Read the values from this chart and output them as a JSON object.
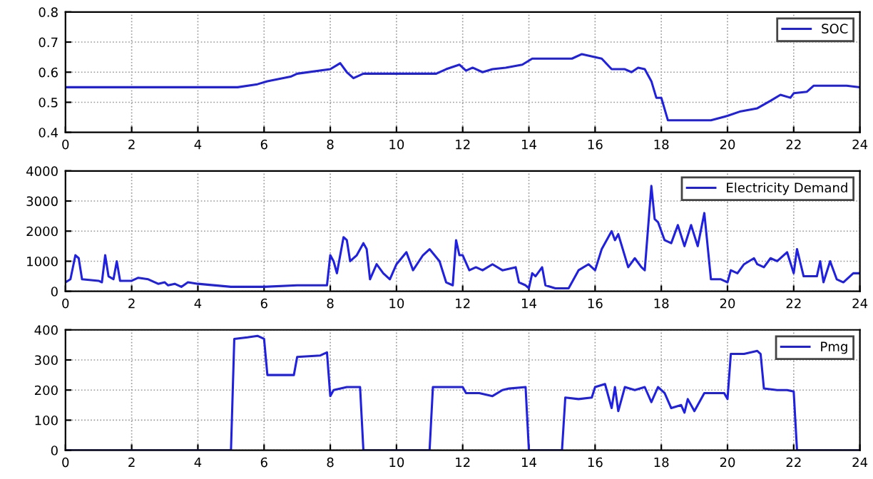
{
  "chart_data": [
    {
      "type": "line",
      "xlim": [
        0,
        24
      ],
      "xticks": [
        0,
        2,
        4,
        6,
        8,
        10,
        12,
        14,
        16,
        18,
        20,
        22,
        24
      ],
      "ylim": [
        0.4,
        0.8
      ],
      "yticks": [
        0.4,
        0.5,
        0.6,
        0.7,
        0.8
      ],
      "grid": true,
      "legend": "top right",
      "line_style": "solid",
      "series": [
        {
          "name": "SOC",
          "color": "#2020e0",
          "x": [
            0,
            5.2,
            5.8,
            6.1,
            6.8,
            7,
            8,
            8.3,
            8.5,
            8.7,
            9,
            11.2,
            11.5,
            11.9,
            12.1,
            12.3,
            12.6,
            12.9,
            13.3,
            13.8,
            14.1,
            15.3,
            15.6,
            16.2,
            16.5,
            16.9,
            17.1,
            17.3,
            17.5,
            17.7,
            17.85,
            18,
            18.2,
            19.5,
            20,
            20.4,
            20.9,
            21.3,
            21.6,
            21.9,
            22,
            22.4,
            22.6,
            23.6,
            24
          ],
          "values": [
            0.55,
            0.55,
            0.56,
            0.57,
            0.585,
            0.595,
            0.61,
            0.63,
            0.6,
            0.58,
            0.595,
            0.595,
            0.61,
            0.625,
            0.605,
            0.615,
            0.6,
            0.61,
            0.615,
            0.625,
            0.645,
            0.645,
            0.66,
            0.645,
            0.61,
            0.61,
            0.6,
            0.615,
            0.61,
            0.57,
            0.515,
            0.515,
            0.44,
            0.44,
            0.455,
            0.47,
            0.48,
            0.505,
            0.525,
            0.515,
            0.53,
            0.535,
            0.555,
            0.555,
            0.55
          ]
        }
      ]
    },
    {
      "type": "line",
      "xlim": [
        0,
        24
      ],
      "xticks": [
        0,
        2,
        4,
        6,
        8,
        10,
        12,
        14,
        16,
        18,
        20,
        22,
        24
      ],
      "ylim": [
        0,
        4000
      ],
      "yticks": [
        0,
        1000,
        2000,
        3000,
        4000
      ],
      "grid": true,
      "legend": "top right",
      "line_style": "solid",
      "series": [
        {
          "name": "Electricity Demand",
          "color": "#2020e0",
          "x": [
            0,
            0.15,
            0.3,
            0.4,
            0.5,
            1.0,
            1.1,
            1.2,
            1.3,
            1.45,
            1.55,
            1.65,
            2.0,
            2.2,
            2.5,
            2.8,
            3.0,
            3.1,
            3.3,
            3.5,
            3.7,
            4,
            5,
            6,
            7,
            7.9,
            8.0,
            8.1,
            8.2,
            8.4,
            8.5,
            8.6,
            8.8,
            9.0,
            9.1,
            9.2,
            9.4,
            9.6,
            9.8,
            10.0,
            10.3,
            10.5,
            10.8,
            11.0,
            11.3,
            11.5,
            11.7,
            11.8,
            11.9,
            12.0,
            12.2,
            12.4,
            12.6,
            12.9,
            13.2,
            13.6,
            13.7,
            13.9,
            14.0,
            14.1,
            14.2,
            14.4,
            14.5,
            14.8,
            15.2,
            15.5,
            15.8,
            16.0,
            16.2,
            16.5,
            16.6,
            16.7,
            17.0,
            17.2,
            17.4,
            17.5,
            17.7,
            17.8,
            17.9,
            18.1,
            18.3,
            18.5,
            18.7,
            18.9,
            19.1,
            19.3,
            19.5,
            19.8,
            20.0,
            20.1,
            20.3,
            20.5,
            20.8,
            20.9,
            21.1,
            21.3,
            21.5,
            21.8,
            22.0,
            22.1,
            22.3,
            22.7,
            22.8,
            22.9,
            23.1,
            23.3,
            23.5,
            23.6,
            23.8,
            24
          ],
          "values": [
            300,
            400,
            1200,
            1100,
            400,
            350,
            300,
            1200,
            500,
            400,
            1000,
            350,
            350,
            450,
            400,
            250,
            300,
            200,
            250,
            150,
            300,
            250,
            150,
            150,
            200,
            200,
            1200,
            1000,
            600,
            1800,
            1700,
            1000,
            1200,
            1600,
            1400,
            400,
            900,
            600,
            400,
            900,
            1300,
            700,
            1200,
            1400,
            1000,
            300,
            200,
            1700,
            1200,
            1200,
            700,
            800,
            700,
            900,
            700,
            800,
            300,
            200,
            100,
            600,
            500,
            800,
            200,
            100,
            100,
            700,
            900,
            700,
            1400,
            2000,
            1700,
            1900,
            800,
            1100,
            800,
            700,
            3500,
            2400,
            2300,
            1700,
            1600,
            2200,
            1500,
            2200,
            1500,
            2600,
            400,
            400,
            300,
            700,
            600,
            900,
            1100,
            900,
            800,
            1100,
            1000,
            1300,
            600,
            1400,
            500,
            500,
            1000,
            300,
            1000,
            400,
            300,
            400,
            600,
            600
          ]
        }
      ]
    },
    {
      "type": "line",
      "xlim": [
        0,
        24
      ],
      "xticks": [
        0,
        2,
        4,
        6,
        8,
        10,
        12,
        14,
        16,
        18,
        20,
        22,
        24
      ],
      "ylim": [
        0,
        400
      ],
      "yticks": [
        0,
        100,
        200,
        300,
        400
      ],
      "grid": true,
      "legend": "top right",
      "line_style": "solid",
      "series": [
        {
          "name": "Pmg",
          "color": "#2020e0",
          "x": [
            0,
            5.0,
            5.1,
            5.5,
            5.8,
            6.0,
            6.1,
            6.9,
            7.0,
            7.7,
            7.9,
            8.0,
            8.1,
            8.5,
            8.9,
            9.0,
            11.0,
            11.1,
            11.5,
            12.0,
            12.1,
            12.5,
            12.9,
            13.2,
            13.4,
            13.9,
            14.0,
            15.0,
            15.1,
            15.5,
            15.9,
            16.0,
            16.3,
            16.5,
            16.6,
            16.7,
            16.9,
            17.2,
            17.5,
            17.7,
            17.9,
            18.1,
            18.3,
            18.6,
            18.7,
            18.8,
            19.0,
            19.3,
            19.9,
            20.0,
            20.1,
            20.5,
            20.9,
            21.0,
            21.1,
            21.5,
            21.8,
            22.0,
            22.1,
            24
          ],
          "values": [
            0,
            0,
            370,
            375,
            380,
            370,
            250,
            250,
            310,
            315,
            325,
            180,
            200,
            210,
            210,
            0,
            0,
            210,
            210,
            210,
            190,
            190,
            180,
            200,
            205,
            210,
            0,
            0,
            175,
            170,
            175,
            210,
            220,
            140,
            210,
            130,
            210,
            200,
            210,
            160,
            210,
            190,
            140,
            150,
            125,
            170,
            130,
            190,
            190,
            170,
            320,
            320,
            330,
            320,
            205,
            200,
            200,
            195,
            0,
            0
          ]
        }
      ]
    }
  ]
}
